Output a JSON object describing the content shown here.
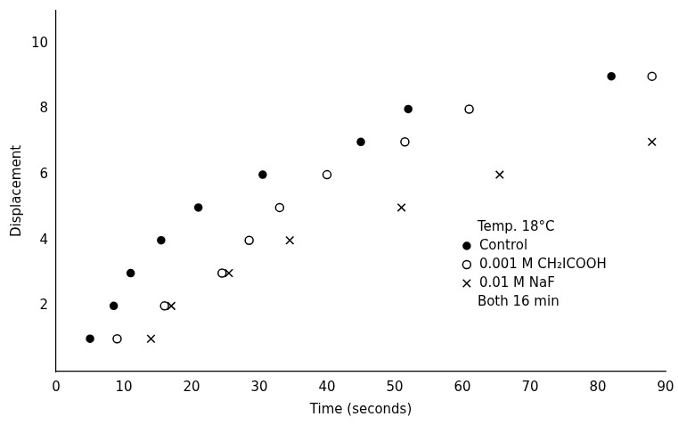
{
  "chart_data": {
    "type": "scatter",
    "x_label": "Time (seconds)",
    "y_label": "Displacement",
    "annotations": [
      "Temp. 18°C",
      "Both 16 min"
    ],
    "legend": "right",
    "grid": false,
    "xlim": [
      0,
      90
    ],
    "xticks": [
      0,
      10,
      20,
      30,
      40,
      50,
      60,
      70,
      80,
      90
    ],
    "ylim": [
      0,
      11
    ],
    "yticks": [
      2,
      4,
      6,
      8,
      10
    ],
    "series": [
      {
        "name": "Control",
        "color": "#000000",
        "marker": "dot",
        "x": [
          5,
          8.5,
          11,
          15.5,
          21,
          30.5,
          45,
          52,
          82
        ],
        "values": [
          1,
          2,
          3,
          4,
          5,
          6,
          7,
          8,
          9
        ]
      },
      {
        "name": "0.001 M CH₂ICOOH",
        "color": "#000000",
        "marker": "circle",
        "x": [
          9,
          16,
          24.5,
          28.5,
          33,
          40,
          51.5,
          61,
          88
        ],
        "values": [
          1,
          2,
          3,
          4,
          5,
          6,
          7,
          8,
          9
        ]
      },
      {
        "name": "0.01 M NaF",
        "color": "#000000",
        "marker": "cross",
        "x": [
          14,
          17,
          25.5,
          34.5,
          51,
          65.5,
          88
        ],
        "values": [
          1,
          2,
          3,
          4,
          5,
          6,
          7
        ]
      }
    ]
  }
}
